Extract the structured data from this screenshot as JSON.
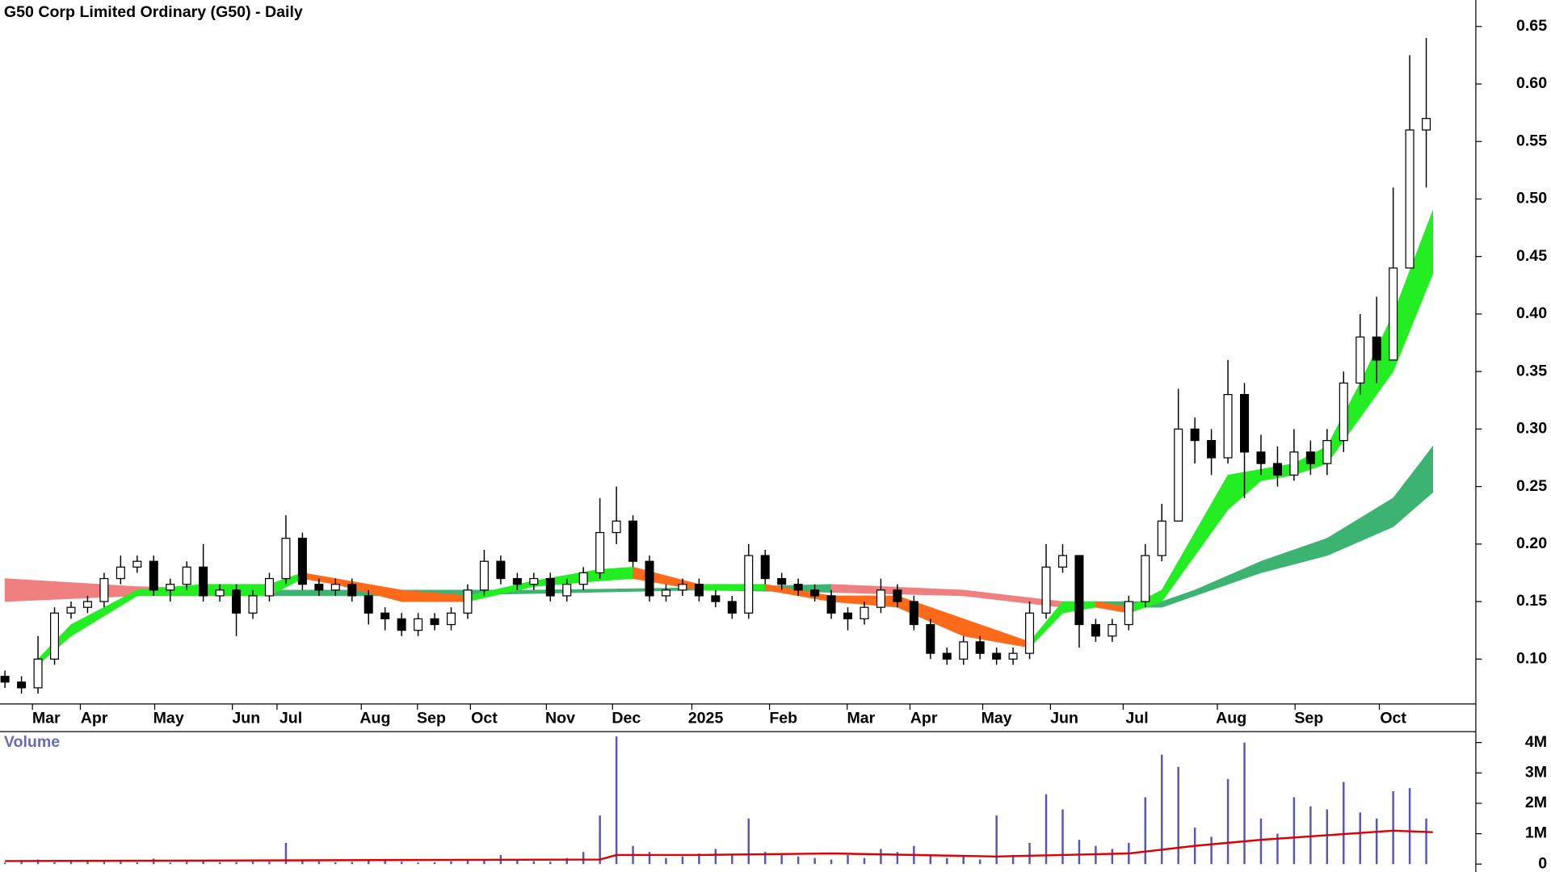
{
  "chart_data": [
    {
      "type": "candlestick",
      "title": "G50 Corp Limited Ordinary (G50) - Daily",
      "x": [
        0,
        1,
        2,
        3,
        4,
        5,
        6,
        7,
        8,
        9,
        10,
        11,
        12,
        13,
        14,
        15,
        16,
        17,
        18,
        19,
        20,
        21,
        22,
        23,
        24,
        25,
        26,
        27,
        28,
        29,
        30,
        31,
        32,
        33,
        34,
        35,
        36,
        37,
        38,
        39,
        40,
        41,
        42,
        43,
        44,
        45,
        46,
        47,
        48,
        49,
        50,
        51,
        52,
        53,
        54,
        55,
        56,
        57,
        58,
        59,
        60,
        61,
        62,
        63,
        64,
        65,
        66,
        67,
        68,
        69,
        70,
        71,
        72,
        73,
        74,
        75,
        76,
        77,
        78,
        79,
        80,
        81,
        82,
        83,
        84,
        85,
        86
      ],
      "open": [
        0.085,
        0.08,
        0.075,
        0.1,
        0.14,
        0.145,
        0.15,
        0.17,
        0.18,
        0.185,
        0.16,
        0.165,
        0.18,
        0.155,
        0.16,
        0.14,
        0.155,
        0.17,
        0.205,
        0.165,
        0.16,
        0.165,
        0.155,
        0.14,
        0.135,
        0.125,
        0.135,
        0.13,
        0.14,
        0.16,
        0.185,
        0.17,
        0.165,
        0.17,
        0.155,
        0.165,
        0.175,
        0.21,
        0.22,
        0.185,
        0.155,
        0.16,
        0.165,
        0.155,
        0.15,
        0.14,
        0.19,
        0.17,
        0.165,
        0.16,
        0.155,
        0.14,
        0.135,
        0.145,
        0.16,
        0.15,
        0.13,
        0.105,
        0.1,
        0.115,
        0.105,
        0.1,
        0.105,
        0.14,
        0.18,
        0.19,
        0.13,
        0.12,
        0.13,
        0.15,
        0.19,
        0.22,
        0.3,
        0.29,
        0.275,
        0.33,
        0.28,
        0.27,
        0.26,
        0.28,
        0.27,
        0.29,
        0.34,
        0.38,
        0.36,
        0.44,
        0.56
      ],
      "high": [
        0.09,
        0.085,
        0.12,
        0.145,
        0.15,
        0.155,
        0.175,
        0.19,
        0.19,
        0.19,
        0.17,
        0.185,
        0.2,
        0.165,
        0.165,
        0.16,
        0.175,
        0.225,
        0.21,
        0.17,
        0.17,
        0.17,
        0.16,
        0.145,
        0.14,
        0.14,
        0.14,
        0.145,
        0.165,
        0.195,
        0.19,
        0.175,
        0.175,
        0.175,
        0.17,
        0.18,
        0.24,
        0.25,
        0.225,
        0.19,
        0.165,
        0.17,
        0.17,
        0.16,
        0.155,
        0.2,
        0.195,
        0.175,
        0.17,
        0.165,
        0.16,
        0.145,
        0.15,
        0.17,
        0.165,
        0.155,
        0.135,
        0.11,
        0.12,
        0.12,
        0.11,
        0.11,
        0.15,
        0.2,
        0.2,
        0.19,
        0.135,
        0.135,
        0.155,
        0.2,
        0.235,
        0.335,
        0.31,
        0.3,
        0.36,
        0.34,
        0.295,
        0.285,
        0.3,
        0.29,
        0.3,
        0.35,
        0.4,
        0.415,
        0.51,
        0.625,
        0.64
      ],
      "low": [
        0.075,
        0.07,
        0.07,
        0.095,
        0.135,
        0.14,
        0.145,
        0.165,
        0.175,
        0.155,
        0.15,
        0.16,
        0.15,
        0.15,
        0.12,
        0.135,
        0.15,
        0.165,
        0.16,
        0.155,
        0.155,
        0.15,
        0.13,
        0.125,
        0.12,
        0.12,
        0.125,
        0.125,
        0.135,
        0.155,
        0.165,
        0.16,
        0.16,
        0.15,
        0.15,
        0.16,
        0.17,
        0.2,
        0.18,
        0.15,
        0.15,
        0.155,
        0.15,
        0.145,
        0.135,
        0.135,
        0.165,
        0.16,
        0.155,
        0.15,
        0.135,
        0.125,
        0.13,
        0.14,
        0.145,
        0.125,
        0.1,
        0.095,
        0.095,
        0.1,
        0.095,
        0.095,
        0.1,
        0.135,
        0.175,
        0.11,
        0.115,
        0.115,
        0.125,
        0.145,
        0.185,
        0.22,
        0.27,
        0.26,
        0.27,
        0.24,
        0.26,
        0.25,
        0.255,
        0.26,
        0.26,
        0.28,
        0.33,
        0.34,
        0.36,
        0.44,
        0.51
      ],
      "close": [
        0.08,
        0.075,
        0.1,
        0.14,
        0.145,
        0.15,
        0.17,
        0.18,
        0.185,
        0.16,
        0.165,
        0.18,
        0.155,
        0.16,
        0.14,
        0.155,
        0.17,
        0.205,
        0.165,
        0.16,
        0.165,
        0.155,
        0.14,
        0.135,
        0.125,
        0.135,
        0.13,
        0.14,
        0.16,
        0.185,
        0.17,
        0.165,
        0.17,
        0.155,
        0.165,
        0.175,
        0.21,
        0.22,
        0.185,
        0.155,
        0.16,
        0.165,
        0.155,
        0.15,
        0.14,
        0.19,
        0.17,
        0.165,
        0.16,
        0.155,
        0.14,
        0.135,
        0.145,
        0.16,
        0.15,
        0.13,
        0.105,
        0.1,
        0.115,
        0.105,
        0.1,
        0.105,
        0.14,
        0.18,
        0.19,
        0.13,
        0.12,
        0.13,
        0.15,
        0.19,
        0.22,
        0.3,
        0.29,
        0.275,
        0.33,
        0.28,
        0.27,
        0.26,
        0.28,
        0.27,
        0.29,
        0.34,
        0.38,
        0.36,
        0.44,
        0.56,
        0.57
      ],
      "xlim": [
        -0.3,
        89
      ],
      "xticks": [
        {
          "value": 2.5,
          "label": "Mar"
        },
        {
          "value": 5.4,
          "label": "Apr"
        },
        {
          "value": 9.9,
          "label": "May"
        },
        {
          "value": 14.6,
          "label": "Jun"
        },
        {
          "value": 17.3,
          "label": "Jul"
        },
        {
          "value": 22.4,
          "label": "Aug"
        },
        {
          "value": 25.8,
          "label": "Sep"
        },
        {
          "value": 29,
          "label": "Oct"
        },
        {
          "value": 33.6,
          "label": "Nov"
        },
        {
          "value": 37.6,
          "label": "Dec"
        },
        {
          "value": 42.4,
          "label": "2025"
        },
        {
          "value": 47.1,
          "label": "Feb"
        },
        {
          "value": 51.8,
          "label": "Mar"
        },
        {
          "value": 55.6,
          "label": "Apr"
        },
        {
          "value": 60,
          "label": "May"
        },
        {
          "value": 64.1,
          "label": "Jun"
        },
        {
          "value": 68.5,
          "label": "Jul"
        },
        {
          "value": 74.2,
          "label": "Aug"
        },
        {
          "value": 78.9,
          "label": "Sep"
        },
        {
          "value": 84,
          "label": "Oct"
        }
      ],
      "ylim": [
        0.061,
        0.673
      ],
      "yticks": [
        {
          "value": 0.1,
          "label": "0.10"
        },
        {
          "value": 0.15,
          "label": "0.15"
        },
        {
          "value": 0.2,
          "label": "0.20"
        },
        {
          "value": 0.25,
          "label": "0.25"
        },
        {
          "value": 0.3,
          "label": "0.30"
        },
        {
          "value": 0.35,
          "label": "0.35"
        },
        {
          "value": 0.4,
          "label": "0.40"
        },
        {
          "value": 0.45,
          "label": "0.45"
        },
        {
          "value": 0.5,
          "label": "0.50"
        },
        {
          "value": 0.55,
          "label": "0.55"
        },
        {
          "value": 0.6,
          "label": "0.60"
        },
        {
          "value": 0.65,
          "label": "0.65"
        }
      ],
      "up_color": "#ffffff",
      "down_color": "#000000",
      "bands": [
        {
          "x": [
            0,
            8,
            16,
            24,
            32,
            42,
            50,
            58,
            64,
            70,
            72,
            76,
            80,
            84,
            86.4
          ],
          "lower": [
            0.15,
            0.155,
            0.155,
            0.155,
            0.157,
            0.16,
            0.158,
            0.155,
            0.145,
            0.145,
            0.155,
            0.175,
            0.19,
            0.215,
            0.245
          ],
          "upper": [
            0.17,
            0.163,
            0.16,
            0.16,
            0.16,
            0.162,
            0.165,
            0.16,
            0.15,
            0.15,
            0.16,
            0.185,
            0.205,
            0.24,
            0.285
          ],
          "up_color": "#3cb371",
          "down_color": "#f08080"
        },
        {
          "x": [
            2,
            4,
            8,
            12,
            16,
            18,
            20,
            24,
            28,
            32,
            36,
            38,
            42,
            46,
            50,
            54,
            58,
            62,
            64,
            66,
            68,
            70,
            72,
            74,
            76,
            78,
            80,
            82,
            84,
            86.4
          ],
          "lower": [
            0.095,
            0.12,
            0.155,
            0.155,
            0.155,
            0.17,
            0.165,
            0.15,
            0.15,
            0.163,
            0.168,
            0.17,
            0.16,
            0.16,
            0.15,
            0.145,
            0.12,
            0.11,
            0.14,
            0.145,
            0.14,
            0.15,
            0.19,
            0.23,
            0.255,
            0.26,
            0.27,
            0.31,
            0.35,
            0.435
          ],
          "upper": [
            0.1,
            0.13,
            0.16,
            0.165,
            0.165,
            0.175,
            0.17,
            0.16,
            0.155,
            0.168,
            0.178,
            0.18,
            0.165,
            0.165,
            0.155,
            0.155,
            0.135,
            0.115,
            0.15,
            0.15,
            0.145,
            0.16,
            0.21,
            0.26,
            0.265,
            0.27,
            0.285,
            0.34,
            0.4,
            0.49
          ],
          "up_color": "#22ee22",
          "down_color": "#ff6a1a"
        }
      ]
    },
    {
      "type": "bar",
      "title": "Volume",
      "x": [
        0,
        1,
        2,
        3,
        4,
        5,
        6,
        7,
        8,
        9,
        10,
        11,
        12,
        13,
        14,
        15,
        16,
        17,
        18,
        19,
        20,
        21,
        22,
        23,
        24,
        25,
        26,
        27,
        28,
        29,
        30,
        31,
        32,
        33,
        34,
        35,
        36,
        37,
        38,
        39,
        40,
        41,
        42,
        43,
        44,
        45,
        46,
        47,
        48,
        49,
        50,
        51,
        52,
        53,
        54,
        55,
        56,
        57,
        58,
        59,
        60,
        61,
        62,
        63,
        64,
        65,
        66,
        67,
        68,
        69,
        70,
        71,
        72,
        73,
        74,
        75,
        76,
        77,
        78,
        79,
        80,
        81,
        82,
        83,
        84,
        85,
        86
      ],
      "values": [
        50000,
        80000,
        150000,
        60000,
        90000,
        120000,
        70000,
        100000,
        60000,
        180000,
        50000,
        80000,
        100000,
        60000,
        70000,
        90000,
        80000,
        700000,
        150000,
        90000,
        60000,
        70000,
        100000,
        120000,
        80000,
        50000,
        60000,
        90000,
        110000,
        150000,
        300000,
        120000,
        100000,
        80000,
        200000,
        400000,
        1600000,
        4200000,
        600000,
        400000,
        200000,
        250000,
        350000,
        500000,
        300000,
        1500000,
        400000,
        300000,
        250000,
        200000,
        150000,
        300000,
        200000,
        500000,
        400000,
        600000,
        300000,
        200000,
        250000,
        150000,
        1600000,
        300000,
        700000,
        2300000,
        1800000,
        800000,
        600000,
        500000,
        700000,
        2200000,
        3600000,
        3200000,
        1200000,
        900000,
        2800000,
        4000000,
        1500000,
        1000000,
        2200000,
        1900000,
        1800000,
        2700000,
        1700000,
        1500000,
        2400000,
        2500000,
        1500000
      ],
      "color": "#5555bb",
      "xlim": [
        -0.3,
        89
      ],
      "ylim": [
        0,
        4360000
      ],
      "yticks": [
        0,
        {
          "value": 1000000,
          "label": "1M"
        },
        {
          "value": 2000000,
          "label": "2M"
        },
        {
          "value": 3000000,
          "label": "3M"
        },
        {
          "value": 4000000,
          "label": "4M"
        }
      ],
      "line": {
        "x": [
          0,
          36,
          37,
          42,
          50,
          60,
          64,
          68,
          72,
          76,
          80,
          84,
          86.4
        ],
        "values": [
          100000,
          150000,
          300000,
          300000,
          350000,
          250000,
          300000,
          350000,
          600000,
          800000,
          950000,
          1100000,
          1050000
        ],
        "color": "#dd0000"
      }
    }
  ]
}
